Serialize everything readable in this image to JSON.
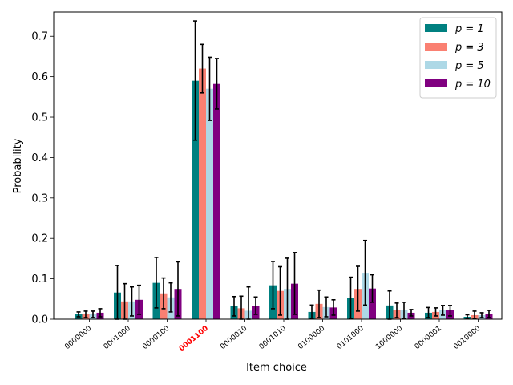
{
  "chart_data": {
    "type": "bar",
    "xlabel": "Item choice",
    "ylabel": "Probability",
    "ylim": [
      0,
      0.76
    ],
    "yticks": [
      "0.0",
      "0.1",
      "0.2",
      "0.3",
      "0.4",
      "0.5",
      "0.6",
      "0.7"
    ],
    "ytick_values": [
      0.0,
      0.1,
      0.2,
      0.3,
      0.4,
      0.5,
      0.6,
      0.7
    ],
    "categories": [
      "0000000",
      "0001000",
      "0000100",
      "0001100",
      "0000010",
      "0001010",
      "0100000",
      "0101000",
      "1000000",
      "0000001",
      "0010000"
    ],
    "highlight_category": "0001100",
    "highlight_color": "#ff0000",
    "legend_position": "top-right",
    "grid": false,
    "series": [
      {
        "name": "p = 1",
        "color": "#008080",
        "values": [
          0.012,
          0.066,
          0.09,
          0.59,
          0.032,
          0.084,
          0.018,
          0.053,
          0.034,
          0.016,
          0.006
        ],
        "err_low": [
          0.006,
          0.0,
          0.028,
          0.443,
          0.008,
          0.026,
          0.002,
          0.002,
          0.0,
          0.004,
          0.001
        ],
        "err_high": [
          0.018,
          0.133,
          0.153,
          0.738,
          0.056,
          0.143,
          0.035,
          0.104,
          0.07,
          0.029,
          0.011
        ]
      },
      {
        "name": "p = 3",
        "color": "#fa8072",
        "values": [
          0.012,
          0.044,
          0.064,
          0.62,
          0.027,
          0.07,
          0.038,
          0.075,
          0.022,
          0.018,
          0.01
        ],
        "err_low": [
          0.004,
          0.0,
          0.026,
          0.56,
          0.0,
          0.01,
          0.004,
          0.02,
          0.004,
          0.008,
          0.002
        ],
        "err_high": [
          0.02,
          0.088,
          0.102,
          0.68,
          0.057,
          0.13,
          0.072,
          0.131,
          0.04,
          0.028,
          0.02
        ]
      },
      {
        "name": "p = 5",
        "color": "#add8e6",
        "values": [
          0.012,
          0.044,
          0.054,
          0.57,
          0.021,
          0.075,
          0.03,
          0.115,
          0.022,
          0.022,
          0.01
        ],
        "err_low": [
          0.004,
          0.008,
          0.018,
          0.492,
          0.0,
          0.0,
          0.006,
          0.035,
          0.002,
          0.01,
          0.004
        ],
        "err_high": [
          0.02,
          0.08,
          0.09,
          0.648,
          0.08,
          0.151,
          0.055,
          0.195,
          0.042,
          0.034,
          0.016
        ]
      },
      {
        "name": "p = 10",
        "color": "#800080",
        "values": [
          0.016,
          0.048,
          0.075,
          0.582,
          0.033,
          0.088,
          0.029,
          0.076,
          0.016,
          0.022,
          0.013
        ],
        "err_low": [
          0.006,
          0.012,
          0.008,
          0.52,
          0.012,
          0.012,
          0.01,
          0.042,
          0.008,
          0.008,
          0.004
        ],
        "err_high": [
          0.026,
          0.084,
          0.142,
          0.645,
          0.055,
          0.165,
          0.048,
          0.11,
          0.024,
          0.034,
          0.022
        ]
      }
    ]
  }
}
